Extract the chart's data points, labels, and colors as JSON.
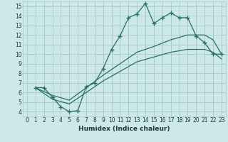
{
  "xlabel": "Humidex (Indice chaleur)",
  "bg_color": "#cce8e8",
  "grid_color": "#aacccc",
  "line_color": "#2a7060",
  "xlim": [
    -0.5,
    23.5
  ],
  "ylim": [
    3.5,
    15.5
  ],
  "xticks": [
    0,
    1,
    2,
    3,
    4,
    5,
    6,
    7,
    8,
    9,
    10,
    11,
    12,
    13,
    14,
    15,
    16,
    17,
    18,
    19,
    20,
    21,
    22,
    23
  ],
  "yticks": [
    4,
    5,
    6,
    7,
    8,
    9,
    10,
    11,
    12,
    13,
    14,
    15
  ],
  "line1_x": [
    1,
    2,
    3,
    4,
    5,
    6,
    7,
    8,
    9,
    10,
    11,
    12,
    13,
    14,
    15,
    16,
    17,
    18,
    19,
    20,
    21,
    22,
    23
  ],
  "line1_y": [
    6.5,
    6.5,
    5.5,
    4.5,
    4.0,
    4.1,
    6.6,
    7.0,
    8.5,
    10.5,
    11.9,
    13.8,
    14.2,
    15.3,
    13.2,
    13.8,
    14.3,
    13.8,
    13.8,
    11.9,
    11.2,
    10.0,
    10.0
  ],
  "line2_x": [
    1,
    3,
    5,
    7,
    9,
    11,
    13,
    15,
    17,
    19,
    21,
    22,
    23
  ],
  "line2_y": [
    6.5,
    5.7,
    5.2,
    6.5,
    7.8,
    9.0,
    10.2,
    10.8,
    11.5,
    12.0,
    12.0,
    11.5,
    10.0
  ],
  "line3_x": [
    1,
    3,
    5,
    7,
    9,
    11,
    13,
    15,
    17,
    19,
    21,
    22,
    23
  ],
  "line3_y": [
    6.5,
    5.3,
    4.8,
    6.0,
    7.2,
    8.2,
    9.2,
    9.7,
    10.2,
    10.5,
    10.5,
    10.2,
    9.5
  ]
}
